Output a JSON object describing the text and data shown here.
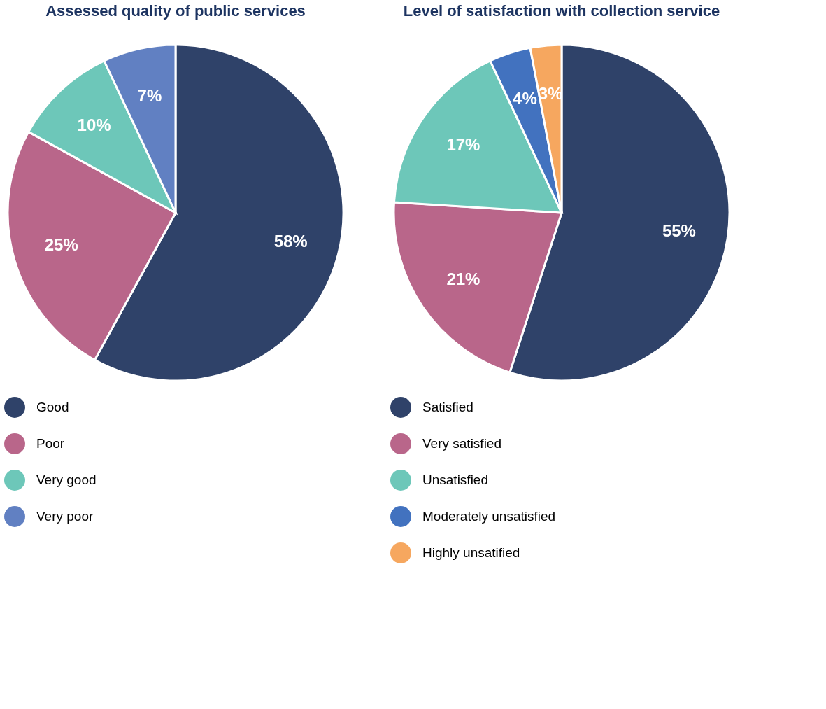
{
  "chart_data": [
    {
      "type": "pie",
      "title": "Assessed quality of public services",
      "categories": [
        "Good",
        "Poor",
        "Very good",
        "Very poor"
      ],
      "values": [
        58,
        25,
        10,
        7
      ],
      "value_labels": [
        "58%",
        "25%",
        "10%",
        "7%"
      ],
      "colors": [
        "#2f4269",
        "#b9668a",
        "#6dc7b9",
        "#6180c2"
      ],
      "legend": "bottom"
    },
    {
      "type": "pie",
      "title": "Level of satisfaction with collection service",
      "categories": [
        "Satisfied",
        "Very satisfied",
        "Unsatisfied",
        "Moderately unsatisfied",
        "Highly unsatified"
      ],
      "values": [
        55,
        21,
        17,
        4,
        3
      ],
      "value_labels": [
        "55%",
        "21%",
        "17%",
        "4%",
        "3%"
      ],
      "colors": [
        "#2f4269",
        "#b9668a",
        "#6dc7b9",
        "#4272bf",
        "#f6a75f"
      ],
      "legend": "bottom"
    }
  ]
}
